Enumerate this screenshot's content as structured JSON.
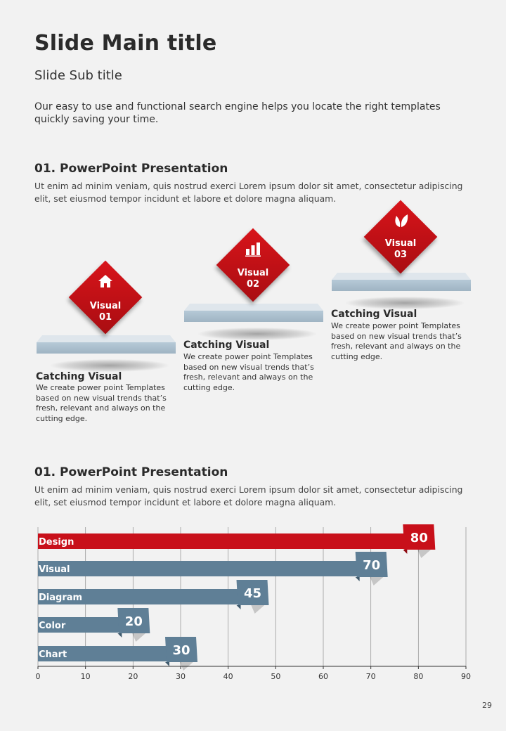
{
  "header": {
    "title": "Slide Main title",
    "subtitle": "Slide Sub title",
    "intro": "Our easy to use and functional search engine helps you locate the right templates quickly saving your time."
  },
  "section1": {
    "heading": "01. PowerPoint Presentation",
    "text": "Ut enim ad minim veniam, quis nostrud exerci  Lorem ipsum dolor sit amet, consectetur adipiscing elit, set eiusmod tempor incidunt et labore et dolore magna aliquam.",
    "cards": [
      {
        "label_line1": "Visual",
        "label_line2": "01",
        "icon": "home-icon",
        "heading": "Catching Visual",
        "text": "We create power point Templates based on new visual trends that’s fresh, relevant and always on the cutting edge."
      },
      {
        "label_line1": "Visual",
        "label_line2": "02",
        "icon": "bar-chart-icon",
        "heading": "Catching Visual",
        "text": "We create power point Templates based on new visual trends that’s fresh, relevant and always on the cutting edge."
      },
      {
        "label_line1": "Visual",
        "label_line2": "03",
        "icon": "leaf-icon",
        "heading": "Catching Visual",
        "text": "We create power point Templates based on new visual trends that’s fresh, relevant and always on the cutting edge."
      }
    ]
  },
  "section2": {
    "heading": "01. PowerPoint Presentation",
    "text": "Ut enim ad minim veniam, quis nostrud exerci  Lorem ipsum dolor sit amet, consectetur adipiscing elit, set eiusmod tempor incidunt et labore et dolore magna aliquam."
  },
  "chart_data": {
    "type": "bar",
    "orientation": "horizontal",
    "categories": [
      "Design",
      "Visual",
      "Diagram",
      "Color",
      "Chart"
    ],
    "values": [
      80,
      70,
      45,
      20,
      30
    ],
    "value_labels": [
      "80",
      "70",
      "45",
      "20",
      "30"
    ],
    "xlim": [
      0,
      90
    ],
    "xticks": [
      "0",
      "10",
      "20",
      "30",
      "40",
      "50",
      "60",
      "70",
      "80",
      "90"
    ],
    "grid": true,
    "colors": {
      "highlight": "#c8101a",
      "highlight_dark": "#8e0a10",
      "default": "#5f7f96",
      "default_dark": "#3f5a6d",
      "grid": "#9a9a9a"
    },
    "highlight_index": 0
  },
  "page_number": "29"
}
